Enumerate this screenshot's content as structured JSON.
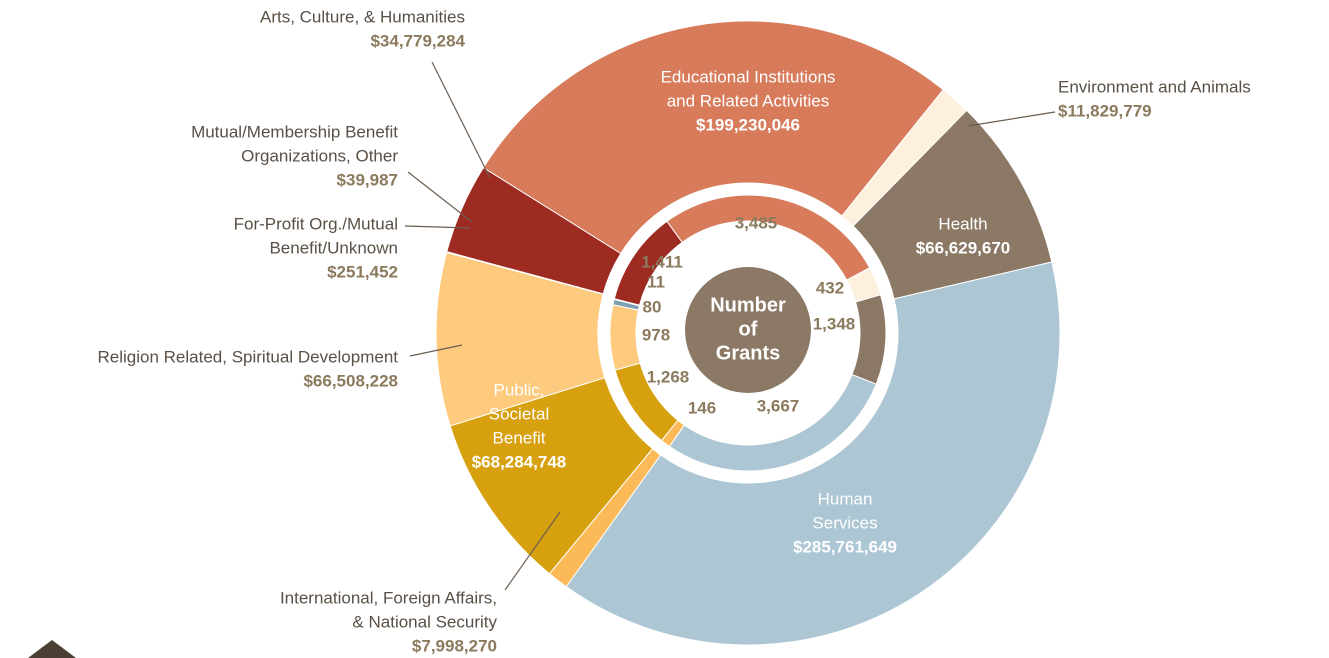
{
  "chart_data": {
    "type": "donut",
    "categories": [
      [
        "Educational Institutions",
        "and Related Activities"
      ],
      [
        "Environment and Animals"
      ],
      [
        "Health"
      ],
      [
        "Human",
        "Services"
      ],
      [
        "International, Foreign Affairs,",
        "& National Security"
      ],
      [
        "Public,",
        "Societal",
        "Benefit"
      ],
      [
        "Religion Related, Spiritual Development"
      ],
      [
        "For-Profit Org./Mutual",
        "Benefit/Unknown"
      ],
      [
        "Mutual/Membership Benefit",
        "Organizations, Other"
      ],
      [
        "Arts, Culture, & Humanities"
      ]
    ],
    "colors": [
      "#d77b5b",
      "#fdf0dc",
      "#8b7966",
      "#adc6d4",
      "#fbb957",
      "#d6a00f",
      "#fdca7e",
      "#7f9db3",
      "#f4b39a",
      "#9e2b22"
    ],
    "series": [
      {
        "values": [
          199230046,
          11829779,
          66629670,
          285761649,
          7998270,
          68284748,
          66508228,
          251452,
          39987,
          34779284
        ],
        "value_labels": [
          "$199,230,046",
          "$11,829,779",
          "$66,629,670",
          "$285,761,649",
          "$7,998,270",
          "$68,284,748",
          "$66,508,228",
          "$251,452",
          "$39,987",
          "$34,779,284"
        ]
      },
      {
        "values": [
          3485,
          432,
          1348,
          3667,
          146,
          1268,
          978,
          80,
          11,
          1411
        ],
        "value_labels": [
          "3,485",
          "432",
          "1,348",
          "3,667",
          "146",
          "1,268",
          "978",
          "80",
          "11",
          "1,411"
        ]
      }
    ],
    "center_label": [
      "Number",
      "of",
      "Grants"
    ]
  }
}
